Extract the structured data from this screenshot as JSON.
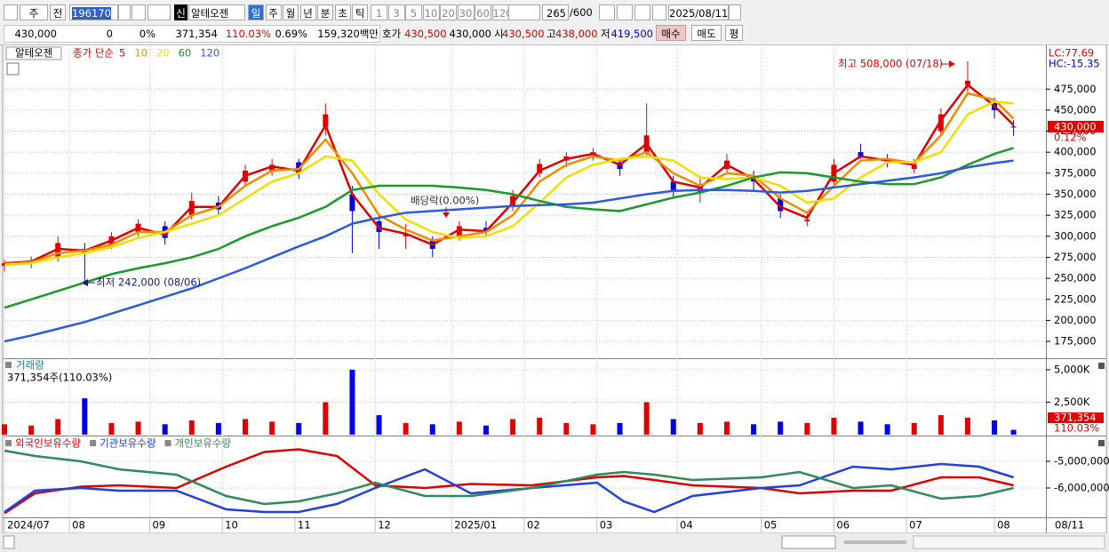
{
  "toolbar": {
    "period_1": "주",
    "prev": "전",
    "code": "196170",
    "credit": "신",
    "name": "알테오젠",
    "periods": [
      "일",
      "주",
      "월",
      "년",
      "분",
      "초",
      "틱"
    ],
    "intervals": [
      "1",
      "3",
      "5",
      "10",
      "20",
      "30",
      "60",
      "120"
    ],
    "count": "265",
    "max": "/600",
    "date": "2025/08/11"
  },
  "quote": {
    "price": "430,000",
    "change": "0",
    "change_rate": "0%",
    "volume": "371,354",
    "volume_rate": "110.03%",
    "turnover": "0.69%",
    "amount": "159,320백만",
    "ask_label": "호가",
    "ask": "430,500",
    "bid": "430,000",
    "open_label": "시",
    "open": "430,500",
    "high_label": "고",
    "high": "438,000",
    "low_label": "저",
    "low": "419,500",
    "buy": "매수",
    "sell": "매도",
    "avg": "평"
  },
  "chart_data": [
    {
      "type": "candlestick",
      "title": "알테오젠",
      "legend_prefix": "종가 단순",
      "up_color": "#e00000",
      "down_color": "#0000e0",
      "grid": true,
      "x": [
        0,
        7,
        14,
        21,
        28,
        35,
        42,
        49,
        56,
        63,
        70,
        77,
        84,
        91,
        98,
        105,
        112,
        119,
        126,
        133,
        140,
        147,
        154,
        161,
        168,
        175,
        182,
        189,
        196,
        203,
        210,
        217,
        224,
        231,
        238,
        245,
        252,
        259,
        264
      ],
      "open": [
        265000,
        268000,
        275000,
        285000,
        290000,
        305000,
        312000,
        325000,
        340000,
        365000,
        378000,
        388000,
        430000,
        350000,
        318000,
        300000,
        295000,
        298000,
        310000,
        335000,
        375000,
        390000,
        398000,
        388000,
        400000,
        365000,
        352000,
        380000,
        372000,
        345000,
        318000,
        365000,
        400000,
        392000,
        380000,
        425000,
        480000,
        460000,
        430500
      ],
      "high": [
        272000,
        276000,
        300000,
        292000,
        305000,
        320000,
        318000,
        352000,
        348000,
        385000,
        392000,
        392000,
        458000,
        360000,
        325000,
        315000,
        300000,
        318000,
        318000,
        355000,
        392000,
        400000,
        405000,
        392000,
        458000,
        372000,
        372000,
        398000,
        378000,
        350000,
        330000,
        392000,
        410000,
        398000,
        392000,
        452000,
        508000,
        465000,
        438000
      ],
      "low": [
        258000,
        262000,
        270000,
        242000,
        285000,
        300000,
        290000,
        320000,
        325000,
        360000,
        372000,
        368000,
        420000,
        280000,
        285000,
        285000,
        275000,
        295000,
        300000,
        330000,
        370000,
        382000,
        390000,
        372000,
        395000,
        345000,
        340000,
        375000,
        355000,
        322000,
        312000,
        360000,
        392000,
        382000,
        375000,
        420000,
        472000,
        440000,
        419500
      ],
      "close": [
        268000,
        270000,
        292000,
        280000,
        300000,
        315000,
        298000,
        342000,
        332000,
        378000,
        385000,
        375000,
        445000,
        330000,
        305000,
        302000,
        285000,
        312000,
        305000,
        348000,
        386000,
        395000,
        400000,
        380000,
        420000,
        355000,
        360000,
        390000,
        365000,
        330000,
        320000,
        385000,
        395000,
        390000,
        385000,
        445000,
        485000,
        450000,
        430000
      ],
      "series": [
        {
          "name": "5",
          "color": "#e00000",
          "values": [
            268000,
            270000,
            285000,
            283000,
            295000,
            310000,
            302000,
            335000,
            335000,
            372000,
            383000,
            378000,
            432000,
            350000,
            310000,
            303000,
            290000,
            308000,
            306000,
            340000,
            378000,
            392000,
            398000,
            385000,
            410000,
            365000,
            358000,
            385000,
            368000,
            335000,
            322000,
            375000,
            395000,
            390000,
            385000,
            438000,
            480000,
            455000,
            432000
          ]
        },
        {
          "name": "10",
          "color": "#f08c00",
          "values": [
            267000,
            269000,
            280000,
            283000,
            290000,
            305000,
            305000,
            325000,
            335000,
            360000,
            378000,
            380000,
            415000,
            375000,
            325000,
            308000,
            295000,
            300000,
            305000,
            325000,
            365000,
            385000,
            395000,
            390000,
            400000,
            375000,
            360000,
            375000,
            372000,
            345000,
            328000,
            360000,
            390000,
            392000,
            387000,
            420000,
            470000,
            462000,
            440000
          ]
        },
        {
          "name": "20",
          "color": "#f0e000",
          "values": [
            266000,
            268000,
            275000,
            280000,
            287000,
            298000,
            305000,
            315000,
            325000,
            345000,
            365000,
            375000,
            395000,
            390000,
            350000,
            320000,
            305000,
            298000,
            300000,
            312000,
            340000,
            370000,
            385000,
            392000,
            395000,
            390000,
            370000,
            368000,
            370000,
            360000,
            340000,
            345000,
            370000,
            388000,
            388000,
            400000,
            445000,
            460000,
            458000
          ]
        },
        {
          "name": "60",
          "color": "#1a9a2a",
          "values": [
            215000,
            225000,
            235000,
            245000,
            255000,
            262000,
            268000,
            275000,
            285000,
            300000,
            312000,
            322000,
            335000,
            355000,
            360000,
            360000,
            360000,
            358000,
            355000,
            350000,
            342000,
            335000,
            332000,
            330000,
            338000,
            346000,
            352000,
            360000,
            370000,
            376000,
            375000,
            370000,
            365000,
            362000,
            362000,
            370000,
            385000,
            398000,
            405000
          ]
        },
        {
          "name": "120",
          "color": "#2a5ae0",
          "values": [
            175000,
            182000,
            190000,
            198000,
            208000,
            218000,
            228000,
            238000,
            250000,
            262000,
            275000,
            288000,
            300000,
            315000,
            322000,
            328000,
            330000,
            332000,
            334000,
            336000,
            337000,
            338000,
            340000,
            345000,
            350000,
            354000,
            355000,
            355000,
            354000,
            352000,
            354000,
            358000,
            362000,
            366000,
            370000,
            375000,
            382000,
            387000,
            390000
          ]
        }
      ],
      "xlim": [
        0,
        272
      ],
      "xticks": [
        {
          "value": 0,
          "label": "2024/07"
        },
        {
          "value": 17,
          "label": "08"
        },
        {
          "value": 38,
          "label": "09"
        },
        {
          "value": 57,
          "label": "10"
        },
        {
          "value": 76,
          "label": "11"
        },
        {
          "value": 97,
          "label": "12"
        },
        {
          "value": 117,
          "label": "2025/01"
        },
        {
          "value": 136,
          "label": "02"
        },
        {
          "value": 155,
          "label": "03"
        },
        {
          "value": 176,
          "label": "04"
        },
        {
          "value": 198,
          "label": "05"
        },
        {
          "value": 217,
          "label": "06"
        },
        {
          "value": 236,
          "label": "07"
        },
        {
          "value": 259,
          "label": "08"
        }
      ],
      "ylim": [
        155000,
        526000
      ],
      "yticks": [
        {
          "value": 175000,
          "label": "175,000"
        },
        {
          "value": 200000,
          "label": "200,000"
        },
        {
          "value": 225000,
          "label": "225,000"
        },
        {
          "value": 250000,
          "label": "250,000"
        },
        {
          "value": 275000,
          "label": "275,000"
        },
        {
          "value": 300000,
          "label": "300,000"
        },
        {
          "value": 325000,
          "label": "325,000"
        },
        {
          "value": 350000,
          "label": "350,000"
        },
        {
          "value": 375000,
          "label": "375,000"
        },
        {
          "value": 400000,
          "label": "400,000"
        },
        {
          "value": 425000,
          "label": "425,000"
        },
        {
          "value": 450000,
          "label": "450,000"
        },
        {
          "value": 475000,
          "label": "475,000"
        }
      ],
      "annotations": {
        "high": "최고 508,000 (07/18)",
        "low": "최저 242,000 (08/06)",
        "dividend": "배당락(0.00%)"
      },
      "lc_label": "LC:77.69",
      "hc_label": "HC:-15.35",
      "last_label": "430,000",
      "last_change": "0.12%"
    },
    {
      "type": "bar",
      "title": "거래량",
      "subtitle": "371,354주(110.03%)",
      "grid": true,
      "x": [
        0,
        7,
        14,
        21,
        28,
        35,
        42,
        49,
        56,
        63,
        70,
        77,
        84,
        91,
        98,
        105,
        112,
        119,
        126,
        133,
        140,
        147,
        154,
        161,
        168,
        175,
        182,
        189,
        196,
        203,
        210,
        217,
        224,
        231,
        238,
        245,
        252,
        259,
        264
      ],
      "values": [
        800000,
        700000,
        1200000,
        2800000,
        900000,
        1000000,
        800000,
        1100000,
        900000,
        1200000,
        1000000,
        900000,
        2500000,
        5000000,
        1500000,
        900000,
        800000,
        1000000,
        700000,
        1200000,
        1300000,
        900000,
        800000,
        900000,
        2500000,
        1200000,
        900000,
        1000000,
        800000,
        1000000,
        900000,
        1300000,
        1000000,
        800000,
        900000,
        1500000,
        1300000,
        1100000,
        371354
      ],
      "up_color": "#e00000",
      "down_color": "#0000e0",
      "ylim": [
        0,
        5750000
      ],
      "yticks": [
        {
          "value": 2500000,
          "label": "2,500K"
        },
        {
          "value": 5000000,
          "label": "5,000K"
        }
      ],
      "last_label": "371,354",
      "last_rate": "110.03%"
    },
    {
      "type": "line",
      "grid": true,
      "x": [
        0,
        8,
        20,
        30,
        45,
        58,
        68,
        77,
        87,
        97,
        110,
        122,
        138,
        155,
        162,
        170,
        180,
        198,
        208,
        222,
        232,
        245,
        255,
        264
      ],
      "series": [
        {
          "name": "외국인보유수량",
          "color": "#e00000",
          "values": [
            -6950000,
            -6200000,
            -5950000,
            -5900000,
            -6000000,
            -5200000,
            -4650000,
            -4550000,
            -4800000,
            -5900000,
            -6000000,
            -5850000,
            -5900000,
            -5600000,
            -5550000,
            -5700000,
            -5900000,
            -6000000,
            -6200000,
            -6100000,
            -6100000,
            -5600000,
            -5600000,
            -5900000
          ]
        },
        {
          "name": "기관보유수량",
          "color": "#2040e0",
          "values": [
            -6900000,
            -6100000,
            -6000000,
            -6100000,
            -6100000,
            -6800000,
            -6900000,
            -6900000,
            -6600000,
            -6000000,
            -5300000,
            -6200000,
            -6000000,
            -5800000,
            -6500000,
            -6900000,
            -6300000,
            -6000000,
            -5900000,
            -5200000,
            -5300000,
            -5100000,
            -5200000,
            -5600000
          ]
        },
        {
          "name": "개인보유수량",
          "color": "#2e8b57",
          "values": [
            -4600000,
            -4800000,
            -5000000,
            -5300000,
            -5500000,
            -6300000,
            -6600000,
            -6500000,
            -6200000,
            -5800000,
            -6300000,
            -6300000,
            -6000000,
            -5500000,
            -5400000,
            -5500000,
            -5700000,
            -5600000,
            -5400000,
            -6000000,
            -5900000,
            -6400000,
            -6300000,
            -6000000
          ]
        }
      ],
      "ylim": [
        -7100000,
        -4100000
      ],
      "yticks": [
        {
          "value": -5000000,
          "label": "-5,000,000"
        },
        {
          "value": -6000000,
          "label": "-6,000,000"
        }
      ],
      "end_label": "08/11"
    }
  ]
}
